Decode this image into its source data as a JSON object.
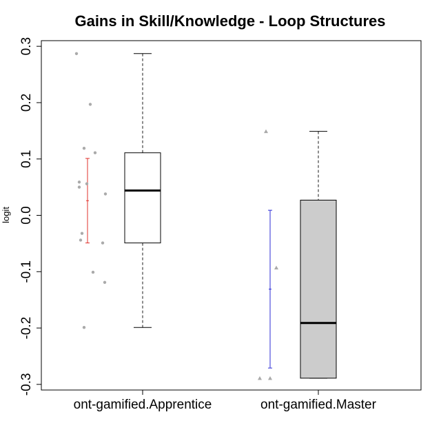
{
  "chart_data": {
    "type": "boxplot",
    "title": "Gains in Skill/Knowledge - Loop Structures",
    "xlabel": "",
    "ylabel": "logit",
    "ylim": [
      -0.31,
      0.31
    ],
    "yticks": [
      -0.3,
      -0.2,
      -0.1,
      0.0,
      0.1,
      0.2,
      0.3
    ],
    "ytick_labels": [
      "-0.3",
      "-0.2",
      "-0.1",
      "0.0",
      "0.1",
      "0.2",
      "0.3"
    ],
    "categories": [
      "ont-gamified.Apprentice",
      "ont-gamified.Master"
    ],
    "groups": [
      {
        "name": "ont-gamified.Apprentice",
        "box": {
          "whisker_low": -0.199,
          "q1": -0.049,
          "median": 0.044,
          "q3": 0.111,
          "whisker_high": 0.287
        },
        "box_color": "#ffffff",
        "points": [
          0.287,
          0.197,
          0.119,
          0.111,
          0.059,
          0.056,
          0.05,
          0.038,
          -0.032,
          -0.044,
          -0.049,
          -0.101,
          -0.119,
          -0.199
        ],
        "point_color": "#aaaaaa",
        "point_shape": "circle",
        "interval": {
          "low": -0.049,
          "mid": 0.026,
          "high": 0.101,
          "color": "#e0312b"
        }
      },
      {
        "name": "ont-gamified.Master",
        "box": {
          "whisker_low": -0.289,
          "q1": -0.289,
          "median": -0.191,
          "q3": 0.027,
          "whisker_high": 0.149
        },
        "box_color": "#cccccc",
        "points": [
          0.149,
          -0.093,
          -0.289,
          -0.289
        ],
        "point_color": "#aaaaaa",
        "point_shape": "triangle",
        "interval": {
          "low": -0.271,
          "mid": -0.131,
          "high": 0.009,
          "color": "#2a2ad6"
        }
      }
    ],
    "grid": false,
    "legend": "none"
  }
}
